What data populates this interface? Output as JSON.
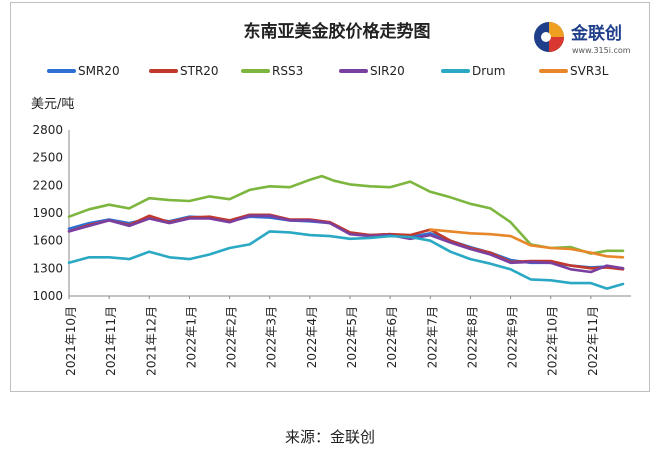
{
  "chart_data": {
    "type": "line",
    "title": "东南亚美金胶价格走势图",
    "ylabel": "美元/吨",
    "ylim": [
      1000,
      2800
    ],
    "yticks": [
      1000,
      1300,
      1600,
      1900,
      2200,
      2500,
      2800
    ],
    "xlim": [
      0,
      14
    ],
    "x_tick_labels": [
      "2021年10月",
      "2021年11月",
      "2021年12月",
      "2022年1月",
      "2022年2月",
      "2022年3月",
      "2022年4月",
      "2022年5月",
      "2022年6月",
      "2022年7月",
      "2022年8月",
      "2022年9月",
      "2022年10月",
      "2022年11月"
    ],
    "legend_position": "top",
    "grid": false,
    "series": [
      {
        "name": "SMR20",
        "color": "#2e6fd3",
        "x": [
          0,
          0.5,
          1,
          1.5,
          2,
          2.5,
          3,
          3.5,
          4,
          4.5,
          5,
          5.5,
          6,
          6.5,
          7,
          7.5,
          8,
          8.5,
          9,
          9.5,
          10,
          10.5,
          11,
          11.5,
          12,
          12.5,
          13,
          13.4,
          13.8
        ],
        "y": [
          1730,
          1790,
          1830,
          1790,
          1840,
          1810,
          1860,
          1850,
          1810,
          1860,
          1850,
          1820,
          1810,
          1790,
          1680,
          1660,
          1670,
          1640,
          1680,
          1600,
          1530,
          1470,
          1390,
          1360,
          1360,
          1330,
          1310,
          1320,
          1300
        ]
      },
      {
        "name": "STR20",
        "color": "#c0392b",
        "x": [
          0,
          0.5,
          1,
          1.5,
          2,
          2.5,
          3,
          3.5,
          4,
          4.5,
          5,
          5.5,
          6,
          6.5,
          7,
          7.5,
          8,
          8.5,
          9,
          9.5,
          10,
          10.5,
          11,
          11.5,
          12,
          12.5,
          13,
          13.4,
          13.8
        ],
        "y": [
          1700,
          1770,
          1820,
          1770,
          1870,
          1800,
          1850,
          1860,
          1820,
          1880,
          1880,
          1830,
          1830,
          1800,
          1690,
          1660,
          1670,
          1660,
          1720,
          1600,
          1520,
          1470,
          1370,
          1380,
          1380,
          1330,
          1300,
          1310,
          1290
        ]
      },
      {
        "name": "RSS3",
        "color": "#7db63f",
        "x": [
          0,
          0.5,
          1,
          1.5,
          2,
          2.5,
          3,
          3.5,
          4,
          4.5,
          5,
          5.5,
          6,
          6.3,
          6.6,
          7,
          7.5,
          8,
          8.5,
          9,
          9.5,
          10,
          10.5,
          11,
          11.5,
          12,
          12.5,
          13,
          13.4,
          13.8
        ],
        "y": [
          1860,
          1940,
          1990,
          1950,
          2060,
          2040,
          2030,
          2080,
          2050,
          2150,
          2190,
          2180,
          2260,
          2300,
          2250,
          2210,
          2190,
          2180,
          2240,
          2130,
          2070,
          2000,
          1950,
          1800,
          1560,
          1520,
          1530,
          1460,
          1490,
          1490
        ]
      },
      {
        "name": "SIR20",
        "color": "#7b3fa0",
        "x": [
          0,
          0.5,
          1,
          1.5,
          2,
          2.5,
          3,
          3.5,
          4,
          4.5,
          5,
          5.5,
          6,
          6.5,
          7,
          7.5,
          8,
          8.5,
          9,
          9.5,
          10,
          10.5,
          11,
          11.5,
          12,
          12.5,
          13,
          13.4,
          13.8
        ],
        "y": [
          1700,
          1760,
          1820,
          1760,
          1840,
          1790,
          1840,
          1840,
          1800,
          1870,
          1870,
          1820,
          1820,
          1790,
          1670,
          1650,
          1660,
          1620,
          1660,
          1580,
          1510,
          1450,
          1360,
          1370,
          1360,
          1290,
          1260,
          1330,
          1300
        ]
      },
      {
        "name": "Drum",
        "color": "#2aa8c4",
        "x": [
          0,
          0.5,
          1,
          1.5,
          2,
          2.5,
          3,
          3.5,
          4,
          4.5,
          5,
          5.5,
          6,
          6.5,
          7,
          7.5,
          8,
          8.5,
          9,
          9.5,
          10,
          10.5,
          11,
          11.5,
          12,
          12.5,
          13,
          13.4,
          13.8
        ],
        "y": [
          1360,
          1420,
          1420,
          1400,
          1480,
          1420,
          1400,
          1450,
          1520,
          1560,
          1700,
          1690,
          1660,
          1650,
          1620,
          1630,
          1650,
          1640,
          1600,
          1480,
          1400,
          1350,
          1290,
          1180,
          1170,
          1140,
          1140,
          1080,
          1130
        ]
      },
      {
        "name": "SVR3L",
        "color": "#e8862a",
        "x": [
          9,
          9.5,
          10,
          10.5,
          11,
          11.5,
          12,
          12.5,
          13,
          13.4,
          13.8
        ],
        "y": [
          1720,
          1700,
          1680,
          1670,
          1650,
          1550,
          1520,
          1510,
          1470,
          1430,
          1420
        ]
      }
    ]
  },
  "logo": {
    "name": "金联创",
    "url": "www.315i.com"
  },
  "source": "来源：金联创"
}
